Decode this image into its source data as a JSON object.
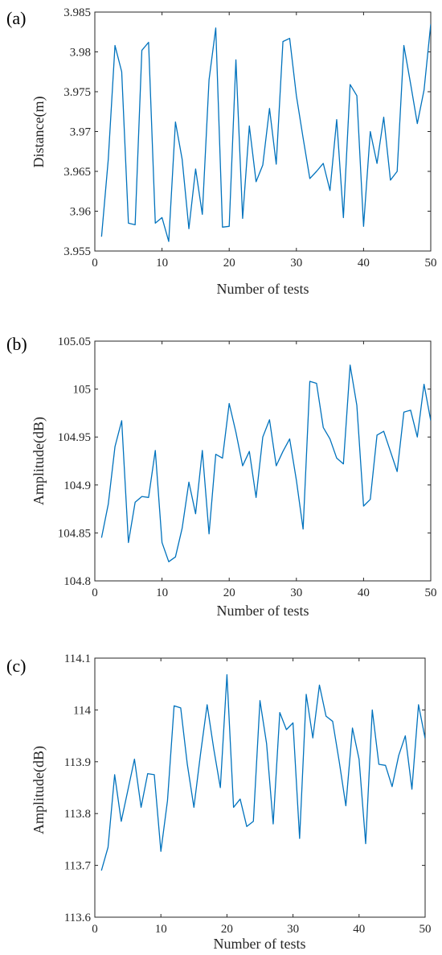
{
  "chart_data": [
    {
      "type": "line",
      "panel_label": "(a)",
      "xlabel": "Number of tests",
      "ylabel": "Distance(m)",
      "xlim": [
        0,
        50
      ],
      "ylim": [
        3.955,
        3.985
      ],
      "xticks": [
        0,
        10,
        20,
        30,
        40,
        50
      ],
      "yticks": [
        3.955,
        3.96,
        3.965,
        3.97,
        3.975,
        3.98,
        3.985
      ],
      "ytick_labels": [
        "3.955",
        "3.96",
        "3.965",
        "3.97",
        "3.975",
        "3.98",
        "3.985"
      ],
      "color": "#0072BD",
      "series": [
        {
          "x": [
            1,
            2,
            3,
            4,
            5,
            6,
            7,
            8,
            9,
            10,
            11,
            12,
            13,
            14,
            15,
            16,
            17,
            18,
            19,
            20,
            21,
            22,
            23,
            24,
            25,
            26,
            27,
            28,
            29,
            30,
            31,
            32,
            33,
            34,
            35,
            36,
            37,
            38,
            39,
            40,
            41,
            42,
            43,
            44,
            45,
            46,
            47,
            48,
            49,
            50
          ],
          "values": [
            3.9568,
            3.9665,
            3.9808,
            3.9775,
            3.9585,
            3.9583,
            3.9802,
            3.9812,
            3.9585,
            3.9592,
            3.9562,
            3.9712,
            3.9665,
            3.9578,
            3.9653,
            3.9596,
            3.9765,
            3.983,
            3.958,
            3.9581,
            3.979,
            3.9591,
            3.9707,
            3.9637,
            3.9658,
            3.9729,
            3.9659,
            3.9813,
            3.9817,
            3.9745,
            3.9692,
            3.9641,
            3.965,
            3.966,
            3.9626,
            3.9715,
            3.9592,
            3.9759,
            3.9745,
            3.9581,
            3.97,
            3.966,
            3.9718,
            3.9639,
            3.965,
            3.9808,
            3.976,
            3.971,
            3.9752,
            3.9835
          ]
        }
      ]
    },
    {
      "type": "line",
      "panel_label": "(b)",
      "xlabel": "Number of tests",
      "ylabel": "Amplitude(dB)",
      "xlim": [
        0,
        50
      ],
      "ylim": [
        104.8,
        105.05
      ],
      "xticks": [
        0,
        10,
        20,
        30,
        40,
        50
      ],
      "yticks": [
        104.8,
        104.85,
        104.9,
        104.95,
        105,
        105.05
      ],
      "ytick_labels": [
        "104.8",
        "104.85",
        "104.9",
        "104.95",
        "105",
        "105.05"
      ],
      "color": "#0072BD",
      "series": [
        {
          "x": [
            1,
            2,
            3,
            4,
            5,
            6,
            7,
            8,
            9,
            10,
            11,
            12,
            13,
            14,
            15,
            16,
            17,
            18,
            19,
            20,
            21,
            22,
            23,
            24,
            25,
            26,
            27,
            28,
            29,
            30,
            31,
            32,
            33,
            34,
            35,
            36,
            37,
            38,
            39,
            40,
            41,
            42,
            43,
            44,
            45,
            46,
            47,
            48,
            49,
            50
          ],
          "values": [
            104.845,
            104.88,
            104.94,
            104.967,
            104.84,
            104.882,
            104.888,
            104.887,
            104.936,
            104.84,
            104.82,
            104.825,
            104.855,
            104.903,
            104.87,
            104.936,
            104.849,
            104.932,
            104.928,
            104.985,
            104.955,
            104.92,
            104.935,
            104.887,
            104.95,
            104.968,
            104.92,
            104.935,
            104.948,
            104.905,
            104.854,
            105.008,
            105.006,
            104.96,
            104.948,
            104.928,
            104.922,
            105.025,
            104.983,
            104.878,
            104.885,
            104.952,
            104.956,
            104.935,
            104.914,
            104.976,
            104.978,
            104.95,
            105.005,
            104.967
          ]
        }
      ]
    },
    {
      "type": "line",
      "panel_label": "(c)",
      "xlabel": "Number of tests",
      "ylabel": "Amplitude(dB)",
      "xlim": [
        0,
        50
      ],
      "ylim": [
        113.6,
        114.1
      ],
      "xticks": [
        0,
        10,
        20,
        30,
        40,
        50
      ],
      "yticks": [
        113.6,
        113.7,
        113.8,
        113.9,
        114,
        114.1
      ],
      "ytick_labels": [
        "113.6",
        "113.7",
        "113.8",
        "113.9",
        "114",
        "114.1"
      ],
      "color": "#0072BD",
      "series": [
        {
          "x": [
            1,
            2,
            3,
            4,
            5,
            6,
            7,
            8,
            9,
            10,
            11,
            12,
            13,
            14,
            15,
            16,
            17,
            18,
            19,
            20,
            21,
            22,
            23,
            24,
            25,
            26,
            27,
            28,
            29,
            30,
            31,
            32,
            33,
            34,
            35,
            36,
            37,
            38,
            39,
            40,
            41,
            42,
            43,
            44,
            45,
            46,
            47,
            48,
            49,
            50
          ],
          "values": [
            113.69,
            113.735,
            113.875,
            113.785,
            113.845,
            113.905,
            113.812,
            113.877,
            113.875,
            113.727,
            113.825,
            114.008,
            114.004,
            113.895,
            113.812,
            113.915,
            114.01,
            113.925,
            113.85,
            114.068,
            113.812,
            113.828,
            113.775,
            113.785,
            114.018,
            113.935,
            113.78,
            113.995,
            113.962,
            113.975,
            113.752,
            114.03,
            113.946,
            114.048,
            113.988,
            113.978,
            113.9,
            113.815,
            113.965,
            113.905,
            113.742,
            114.0,
            113.895,
            113.893,
            113.852,
            113.912,
            113.95,
            113.847,
            114.01,
            113.945
          ]
        }
      ]
    }
  ]
}
